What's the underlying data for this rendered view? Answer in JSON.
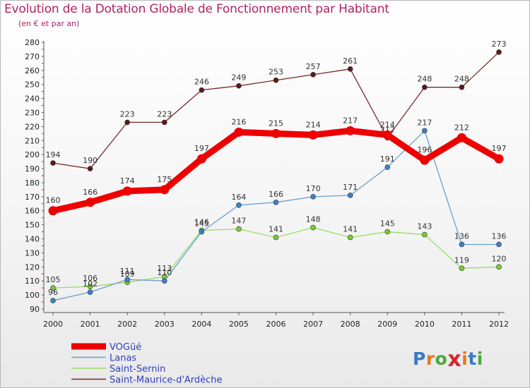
{
  "chart_data": {
    "type": "line",
    "title": "Evolution de la Dotation Globale de Fonctionnement par Habitant",
    "subtitle": "(en € et par an)",
    "x": [
      "2000",
      "2001",
      "2002",
      "2003",
      "2004",
      "2005",
      "2006",
      "2007",
      "2008",
      "2009",
      "2010",
      "2011",
      "2012"
    ],
    "ylim": [
      90,
      280
    ],
    "yticks": [
      90,
      100,
      110,
      120,
      130,
      140,
      150,
      160,
      170,
      180,
      190,
      200,
      210,
      220,
      230,
      240,
      250,
      260,
      270,
      280
    ],
    "grid": false,
    "legend_position": "bottom-left",
    "series": [
      {
        "name": "VOGüé",
        "color": "#ee0000",
        "marker": "#ee0000",
        "values": [
          160,
          166,
          174,
          175,
          197,
          216,
          215,
          214,
          217,
          214,
          196,
          212,
          197
        ]
      },
      {
        "name": "Lanas",
        "color": "#6a9fcf",
        "marker": "#3b82c8",
        "values": [
          96,
          102,
          111,
          110,
          145,
          164,
          166,
          170,
          171,
          191,
          217,
          136,
          136
        ]
      },
      {
        "name": "Saint-Sernin",
        "color": "#99dd66",
        "marker": "#77cc33",
        "values": [
          105,
          106,
          109,
          113,
          146,
          147,
          141,
          148,
          141,
          145,
          143,
          119,
          120
        ]
      },
      {
        "name": "Saint-Maurice-d'Ardèche",
        "color": "#7a2a2a",
        "marker": "#5a1a1a",
        "values": [
          194,
          190,
          223,
          223,
          246,
          249,
          253,
          257,
          261,
          212,
          248,
          248,
          273
        ]
      }
    ]
  },
  "logo": {
    "text": "Prox",
    "text2": "iti",
    "x_mark": "x",
    "dot": "·"
  }
}
